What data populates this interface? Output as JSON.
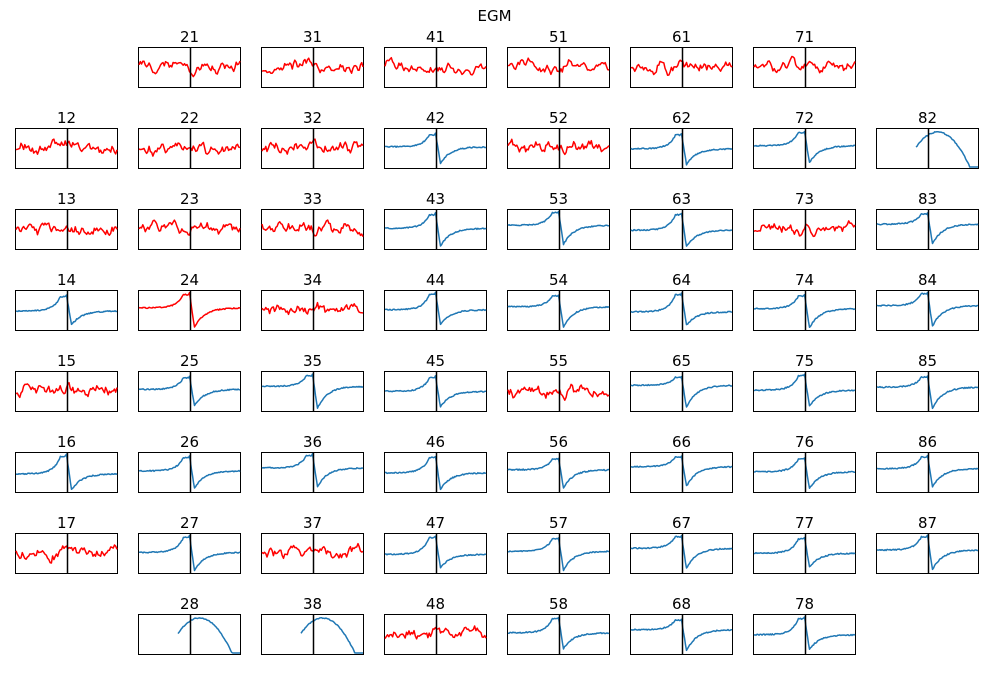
{
  "figure": {
    "title": "EGM"
  },
  "chart_data": {
    "type": "line",
    "title": "EGM",
    "layout": "8x8 small-multiples grid",
    "colors": {
      "noisy": "#ff0000",
      "clean": "#1f77b4",
      "marker": "#000000"
    },
    "x_marker": "vertical line at center of each panel",
    "panels": [
      {
        "label": "21",
        "row": 0,
        "col": 1,
        "style": "noisy",
        "waveform": "noise"
      },
      {
        "label": "31",
        "row": 0,
        "col": 2,
        "style": "noisy",
        "waveform": "noise"
      },
      {
        "label": "41",
        "row": 0,
        "col": 3,
        "style": "noisy",
        "waveform": "noise"
      },
      {
        "label": "51",
        "row": 0,
        "col": 4,
        "style": "noisy",
        "waveform": "noise"
      },
      {
        "label": "61",
        "row": 0,
        "col": 5,
        "style": "noisy",
        "waveform": "noise"
      },
      {
        "label": "71",
        "row": 0,
        "col": 6,
        "style": "noisy",
        "waveform": "noise"
      },
      {
        "label": "12",
        "row": 1,
        "col": 0,
        "style": "noisy",
        "waveform": "noise"
      },
      {
        "label": "22",
        "row": 1,
        "col": 1,
        "style": "noisy",
        "waveform": "noise"
      },
      {
        "label": "32",
        "row": 1,
        "col": 2,
        "style": "noisy",
        "waveform": "noise"
      },
      {
        "label": "42",
        "row": 1,
        "col": 3,
        "style": "clean",
        "waveform": "biphasic"
      },
      {
        "label": "52",
        "row": 1,
        "col": 4,
        "style": "noisy",
        "waveform": "noise"
      },
      {
        "label": "62",
        "row": 1,
        "col": 5,
        "style": "clean",
        "waveform": "biphasic"
      },
      {
        "label": "72",
        "row": 1,
        "col": 6,
        "style": "clean",
        "waveform": "biphasic"
      },
      {
        "label": "82",
        "row": 1,
        "col": 7,
        "style": "clean",
        "waveform": "trough"
      },
      {
        "label": "13",
        "row": 2,
        "col": 0,
        "style": "noisy",
        "waveform": "noise"
      },
      {
        "label": "23",
        "row": 2,
        "col": 1,
        "style": "noisy",
        "waveform": "noise"
      },
      {
        "label": "33",
        "row": 2,
        "col": 2,
        "style": "noisy",
        "waveform": "noise"
      },
      {
        "label": "43",
        "row": 2,
        "col": 3,
        "style": "clean",
        "waveform": "biphasic"
      },
      {
        "label": "53",
        "row": 2,
        "col": 4,
        "style": "clean",
        "waveform": "biphasic"
      },
      {
        "label": "63",
        "row": 2,
        "col": 5,
        "style": "clean",
        "waveform": "biphasic"
      },
      {
        "label": "73",
        "row": 2,
        "col": 6,
        "style": "noisy",
        "waveform": "noise"
      },
      {
        "label": "83",
        "row": 2,
        "col": 7,
        "style": "clean",
        "waveform": "biphasic"
      },
      {
        "label": "14",
        "row": 3,
        "col": 0,
        "style": "clean",
        "waveform": "biphasic"
      },
      {
        "label": "24",
        "row": 3,
        "col": 1,
        "style": "noisy",
        "waveform": "biphasic"
      },
      {
        "label": "34",
        "row": 3,
        "col": 2,
        "style": "noisy",
        "waveform": "noise"
      },
      {
        "label": "44",
        "row": 3,
        "col": 3,
        "style": "clean",
        "waveform": "biphasic"
      },
      {
        "label": "54",
        "row": 3,
        "col": 4,
        "style": "clean",
        "waveform": "biphasic"
      },
      {
        "label": "64",
        "row": 3,
        "col": 5,
        "style": "clean",
        "waveform": "biphasic"
      },
      {
        "label": "74",
        "row": 3,
        "col": 6,
        "style": "clean",
        "waveform": "biphasic"
      },
      {
        "label": "84",
        "row": 3,
        "col": 7,
        "style": "clean",
        "waveform": "biphasic"
      },
      {
        "label": "15",
        "row": 4,
        "col": 0,
        "style": "noisy",
        "waveform": "noise"
      },
      {
        "label": "25",
        "row": 4,
        "col": 1,
        "style": "clean",
        "waveform": "biphasic"
      },
      {
        "label": "35",
        "row": 4,
        "col": 2,
        "style": "clean",
        "waveform": "biphasic"
      },
      {
        "label": "45",
        "row": 4,
        "col": 3,
        "style": "clean",
        "waveform": "biphasic"
      },
      {
        "label": "55",
        "row": 4,
        "col": 4,
        "style": "noisy",
        "waveform": "noise"
      },
      {
        "label": "65",
        "row": 4,
        "col": 5,
        "style": "clean",
        "waveform": "biphasic"
      },
      {
        "label": "75",
        "row": 4,
        "col": 6,
        "style": "clean",
        "waveform": "biphasic"
      },
      {
        "label": "85",
        "row": 4,
        "col": 7,
        "style": "clean",
        "waveform": "biphasic"
      },
      {
        "label": "16",
        "row": 5,
        "col": 0,
        "style": "clean",
        "waveform": "biphasic"
      },
      {
        "label": "26",
        "row": 5,
        "col": 1,
        "style": "clean",
        "waveform": "biphasic"
      },
      {
        "label": "36",
        "row": 5,
        "col": 2,
        "style": "clean",
        "waveform": "biphasic"
      },
      {
        "label": "46",
        "row": 5,
        "col": 3,
        "style": "clean",
        "waveform": "biphasic"
      },
      {
        "label": "56",
        "row": 5,
        "col": 4,
        "style": "clean",
        "waveform": "biphasic"
      },
      {
        "label": "66",
        "row": 5,
        "col": 5,
        "style": "clean",
        "waveform": "biphasic"
      },
      {
        "label": "76",
        "row": 5,
        "col": 6,
        "style": "clean",
        "waveform": "biphasic"
      },
      {
        "label": "86",
        "row": 5,
        "col": 7,
        "style": "clean",
        "waveform": "biphasic"
      },
      {
        "label": "17",
        "row": 6,
        "col": 0,
        "style": "noisy",
        "waveform": "noise"
      },
      {
        "label": "27",
        "row": 6,
        "col": 1,
        "style": "clean",
        "waveform": "biphasic"
      },
      {
        "label": "37",
        "row": 6,
        "col": 2,
        "style": "noisy",
        "waveform": "noise"
      },
      {
        "label": "47",
        "row": 6,
        "col": 3,
        "style": "clean",
        "waveform": "biphasic"
      },
      {
        "label": "57",
        "row": 6,
        "col": 4,
        "style": "clean",
        "waveform": "biphasic"
      },
      {
        "label": "67",
        "row": 6,
        "col": 5,
        "style": "clean",
        "waveform": "biphasic"
      },
      {
        "label": "77",
        "row": 6,
        "col": 6,
        "style": "clean",
        "waveform": "biphasic"
      },
      {
        "label": "87",
        "row": 6,
        "col": 7,
        "style": "clean",
        "waveform": "biphasic"
      },
      {
        "label": "28",
        "row": 7,
        "col": 1,
        "style": "clean",
        "waveform": "trough"
      },
      {
        "label": "38",
        "row": 7,
        "col": 2,
        "style": "clean",
        "waveform": "trough"
      },
      {
        "label": "48",
        "row": 7,
        "col": 3,
        "style": "noisy",
        "waveform": "noise"
      },
      {
        "label": "58",
        "row": 7,
        "col": 4,
        "style": "clean",
        "waveform": "biphasic"
      },
      {
        "label": "68",
        "row": 7,
        "col": 5,
        "style": "clean",
        "waveform": "biphasic"
      },
      {
        "label": "78",
        "row": 7,
        "col": 6,
        "style": "clean",
        "waveform": "biphasic"
      }
    ]
  }
}
